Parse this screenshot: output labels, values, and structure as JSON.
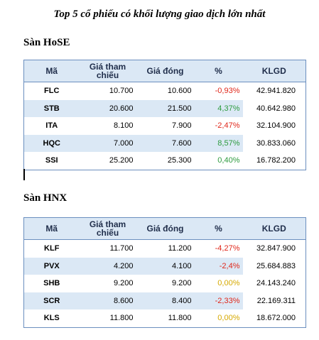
{
  "title": "Top 5 cổ phiếu có khối lượng giao dịch lớn nhất",
  "colors": {
    "up": "#2e9b3f",
    "down": "#e0271a",
    "flat": "#d6a900",
    "header_bg": "#dbe8f5"
  },
  "headers": [
    "Mã",
    "Giá tham chiếu",
    "Giá đóng",
    "%",
    "KLGD"
  ],
  "hose": {
    "label": "Sàn HoSE",
    "rows": [
      {
        "code": "FLC",
        "ref": "10.700",
        "close": "10.600",
        "pct": "-0,93%",
        "vol": "42.941.820",
        "dir": "down"
      },
      {
        "code": "STB",
        "ref": "20.600",
        "close": "21.500",
        "pct": "4,37%",
        "vol": "40.642.980",
        "dir": "up"
      },
      {
        "code": "ITA",
        "ref": "8.100",
        "close": "7.900",
        "pct": "-2,47%",
        "vol": "32.104.900",
        "dir": "down"
      },
      {
        "code": "HQC",
        "ref": "7.000",
        "close": "7.600",
        "pct": "8,57%",
        "vol": "30.833.060",
        "dir": "up"
      },
      {
        "code": "SSI",
        "ref": "25.200",
        "close": "25.300",
        "pct": "0,40%",
        "vol": "16.782.200",
        "dir": "up"
      }
    ]
  },
  "hnx": {
    "label": "Sàn HNX",
    "rows": [
      {
        "code": "KLF",
        "ref": "11.700",
        "close": "11.200",
        "pct": "-4,27%",
        "vol": "32.847.900",
        "dir": "down"
      },
      {
        "code": "PVX",
        "ref": "4.200",
        "close": "4.100",
        "pct": "-2,4%",
        "vol": "25.684.883",
        "dir": "down"
      },
      {
        "code": "SHB",
        "ref": "9.200",
        "close": "9.200",
        "pct": "0,00%",
        "vol": "24.143.240",
        "dir": "flat"
      },
      {
        "code": "SCR",
        "ref": "8.600",
        "close": "8.400",
        "pct": "-2,33%",
        "vol": "22.169.311",
        "dir": "down"
      },
      {
        "code": "KLS",
        "ref": "11.800",
        "close": "11.800",
        "pct": "0,00%",
        "vol": "18.672.000",
        "dir": "flat"
      }
    ]
  }
}
